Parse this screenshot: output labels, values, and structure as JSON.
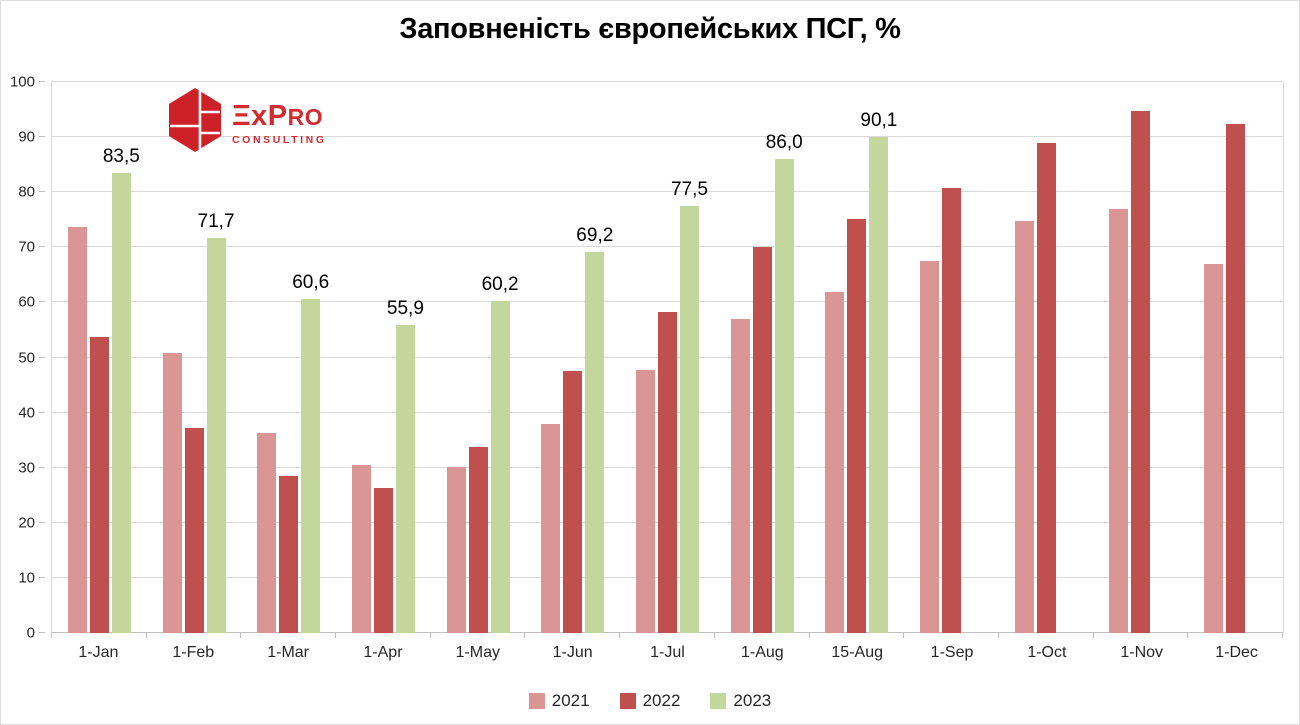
{
  "page": {
    "title": "Заповненість європейських ПСГ, %"
  },
  "logo": {
    "brand_big": "ΞxP",
    "brand_small": "RO",
    "subtitle": "CONSULTING",
    "accent_color": "#ce2027"
  },
  "chart_data": {
    "type": "bar",
    "title": "Заповненість європейських ПСГ, %",
    "categories": [
      "1-Jan",
      "1-Feb",
      "1-Mar",
      "1-Apr",
      "1-May",
      "1-Jun",
      "1-Jul",
      "1-Aug",
      "15-Aug",
      "1-Sep",
      "1-Oct",
      "1-Nov",
      "1-Dec"
    ],
    "series": [
      {
        "name": "2021",
        "color": "#D99694",
        "values": [
          73.7,
          50.8,
          36.3,
          30.5,
          30.1,
          37.9,
          47.7,
          57.0,
          61.8,
          67.6,
          74.8,
          76.9,
          67.0
        ]
      },
      {
        "name": "2022",
        "color": "#C0504D",
        "values": [
          53.7,
          37.2,
          28.5,
          26.4,
          33.7,
          47.5,
          58.3,
          70.1,
          75.1,
          80.7,
          88.9,
          94.8,
          92.3
        ]
      },
      {
        "name": "2023",
        "color": "#C3D69B",
        "values": [
          83.5,
          71.7,
          60.6,
          55.9,
          60.2,
          69.2,
          77.5,
          86.0,
          90.1,
          null,
          null,
          null,
          null
        ],
        "data_labels": [
          "83,5",
          "71,7",
          "60,6",
          "55,9",
          "60,2",
          "69,2",
          "77,5",
          "86,0",
          "90,1",
          null,
          null,
          null,
          null
        ]
      }
    ],
    "xlabel": "",
    "ylabel": "",
    "ylim": [
      0,
      100
    ],
    "yticks": [
      0,
      10,
      20,
      30,
      40,
      50,
      60,
      70,
      80,
      90,
      100
    ],
    "grid": true,
    "legend_position": "bottom"
  },
  "colors": {
    "gridline": "#d9d9d9",
    "baseline": "#bfbfbf",
    "axis_text": "#262626",
    "value_label": "#000000"
  }
}
